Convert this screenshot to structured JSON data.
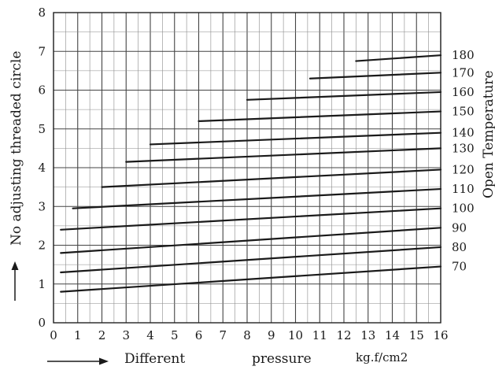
{
  "chart_data": {
    "type": "line",
    "xlabel": "Different",
    "xlabel_2": "pressure",
    "xunit": "kg.f/cm2",
    "ylabel": "No adjusting threaded circle",
    "right_label": "Open Temperature",
    "xlim": [
      0,
      16
    ],
    "ylim": [
      0,
      8
    ],
    "grid": true,
    "x_ticks": [
      "0",
      "1",
      "2",
      "3",
      "4",
      "5",
      "6",
      "7",
      "8",
      "9",
      "10",
      "11",
      "12",
      "13",
      "14",
      "15",
      "16"
    ],
    "y_ticks": [
      "0",
      "1",
      "2",
      "3",
      "4",
      "5",
      "6",
      "7",
      "8"
    ],
    "series": [
      {
        "name": "70",
        "x": [
          0.3,
          16
        ],
        "y": [
          0.8,
          1.45
        ]
      },
      {
        "name": "80",
        "x": [
          0.3,
          16
        ],
        "y": [
          1.3,
          1.95
        ]
      },
      {
        "name": "90",
        "x": [
          0.3,
          16
        ],
        "y": [
          1.8,
          2.45
        ]
      },
      {
        "name": "100",
        "x": [
          0.3,
          16
        ],
        "y": [
          2.4,
          2.95
        ]
      },
      {
        "name": "110",
        "x": [
          0.8,
          16
        ],
        "y": [
          2.95,
          3.45
        ]
      },
      {
        "name": "120",
        "x": [
          2.0,
          16
        ],
        "y": [
          3.5,
          3.95
        ]
      },
      {
        "name": "130",
        "x": [
          3.0,
          16
        ],
        "y": [
          4.15,
          4.5
        ]
      },
      {
        "name": "140",
        "x": [
          4.0,
          16
        ],
        "y": [
          4.6,
          4.9
        ]
      },
      {
        "name": "150",
        "x": [
          6.0,
          16
        ],
        "y": [
          5.2,
          5.45
        ]
      },
      {
        "name": "160",
        "x": [
          8.0,
          16
        ],
        "y": [
          5.75,
          5.95
        ]
      },
      {
        "name": "170",
        "x": [
          10.6,
          16
        ],
        "y": [
          6.3,
          6.45
        ]
      },
      {
        "name": "180",
        "x": [
          12.5,
          16
        ],
        "y": [
          6.75,
          6.9
        ]
      }
    ]
  }
}
